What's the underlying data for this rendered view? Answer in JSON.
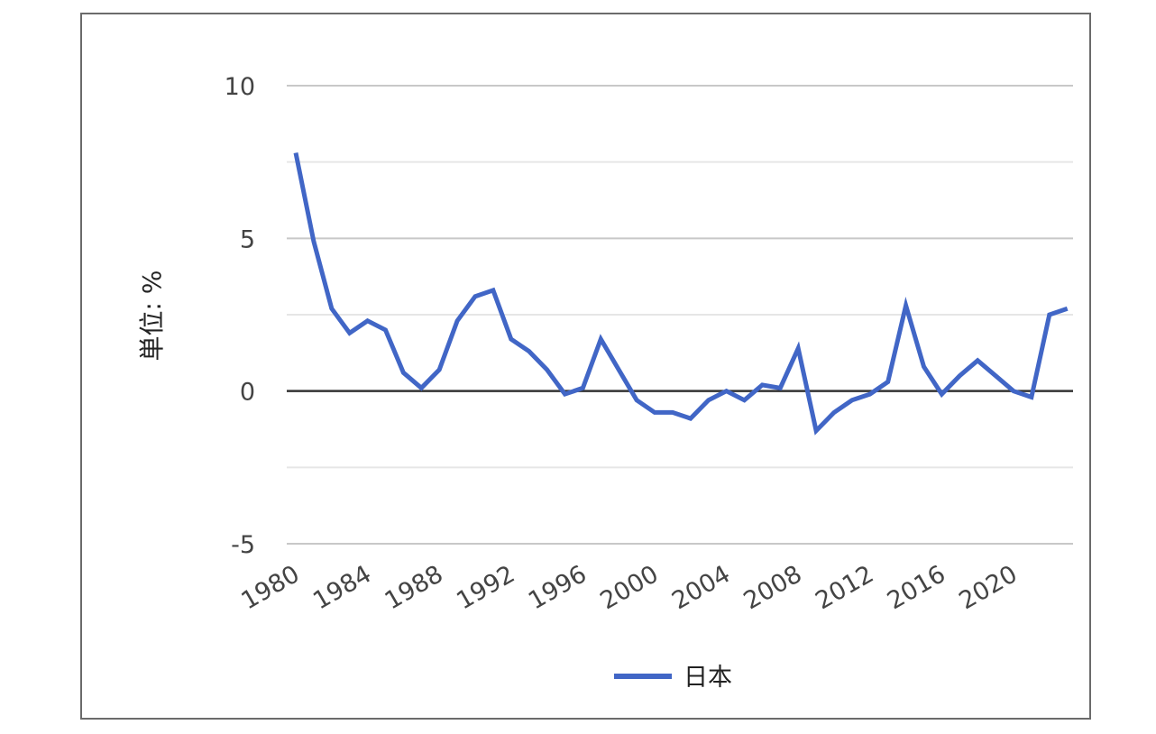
{
  "chart_data": {
    "type": "line",
    "ylabel": "単位: %",
    "xlabel": "",
    "ylim": [
      -5,
      10
    ],
    "yticks": [
      -5,
      0,
      5,
      10
    ],
    "yticks_minor": [
      -2.5,
      2.5,
      7.5
    ],
    "xticks": [
      1980,
      1984,
      1988,
      1992,
      1996,
      2000,
      2004,
      2008,
      2012,
      2016,
      2020
    ],
    "xlim": [
      1980,
      2023
    ],
    "grid": true,
    "legend_position": "bottom",
    "colors": {
      "series": "#4166c6",
      "grid": "#c8c8c8",
      "grid_minor": "#e6e6e6",
      "zero": "#333333"
    },
    "x": [
      1980,
      1981,
      1982,
      1983,
      1984,
      1985,
      1986,
      1987,
      1988,
      1989,
      1990,
      1991,
      1992,
      1993,
      1994,
      1995,
      1996,
      1997,
      1998,
      1999,
      2000,
      2001,
      2002,
      2003,
      2004,
      2005,
      2006,
      2007,
      2008,
      2009,
      2010,
      2011,
      2012,
      2013,
      2014,
      2015,
      2016,
      2017,
      2018,
      2019,
      2020,
      2021,
      2022,
      2023
    ],
    "series": [
      {
        "name": "日本",
        "values": [
          7.8,
          4.9,
          2.7,
          1.9,
          2.3,
          2.0,
          0.6,
          0.1,
          0.7,
          2.3,
          3.1,
          3.3,
          1.7,
          1.3,
          0.7,
          -0.1,
          0.1,
          1.7,
          0.7,
          -0.3,
          -0.7,
          -0.7,
          -0.9,
          -0.3,
          0.0,
          -0.3,
          0.2,
          0.1,
          1.4,
          -1.3,
          -0.7,
          -0.3,
          -0.1,
          0.3,
          2.8,
          0.8,
          -0.1,
          0.5,
          1.0,
          0.5,
          0.0,
          -0.2,
          2.5,
          2.7
        ]
      }
    ]
  }
}
